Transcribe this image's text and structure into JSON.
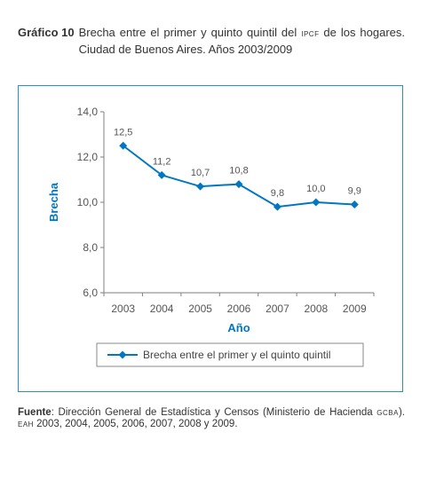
{
  "caption": {
    "number": "Gráfico 10",
    "title_part1": "Brecha entre el primer y quinto quintil del ",
    "title_abbr": "IPCF",
    "title_part2": " de los hogares. Ciudad de Buenos Aires. Años 2003/2009"
  },
  "source": {
    "label": "Fuente",
    "text_part1": ": Dirección General de Estadística y Censos (Ministerio de Hacienda ",
    "abbr1": "GCBA",
    "text_part2": "). ",
    "abbr2": "EAH",
    "text_part3": " 2003, 2004, 2005, 2006, 2007, 2008 y 2009."
  },
  "chart_data": {
    "type": "line",
    "title": "",
    "xlabel": "Año",
    "ylabel": "Brecha",
    "x": [
      "2003",
      "2004",
      "2005",
      "2006",
      "2007",
      "2008",
      "2009"
    ],
    "series": [
      {
        "name": "Brecha entre el primer y el quinto quintil",
        "values": [
          12.5,
          11.2,
          10.7,
          10.8,
          9.8,
          10.0,
          9.9
        ],
        "labels": [
          "12,5",
          "11,2",
          "10,7",
          "10,8",
          "9,8",
          "10,0",
          "9,9"
        ]
      }
    ],
    "ylim": [
      6.0,
      14.0
    ],
    "yticks": [
      6.0,
      8.0,
      10.0,
      12.0,
      14.0
    ],
    "ytick_labels": [
      "6,0",
      "8,0",
      "10,0",
      "12,0",
      "14,0"
    ],
    "grid": false,
    "legend_position": "bottom",
    "colors": {
      "series": "#0077c0",
      "axis": "#7f7f7f",
      "frame": "#2a8fc8",
      "label_text": "#0077c0"
    }
  }
}
